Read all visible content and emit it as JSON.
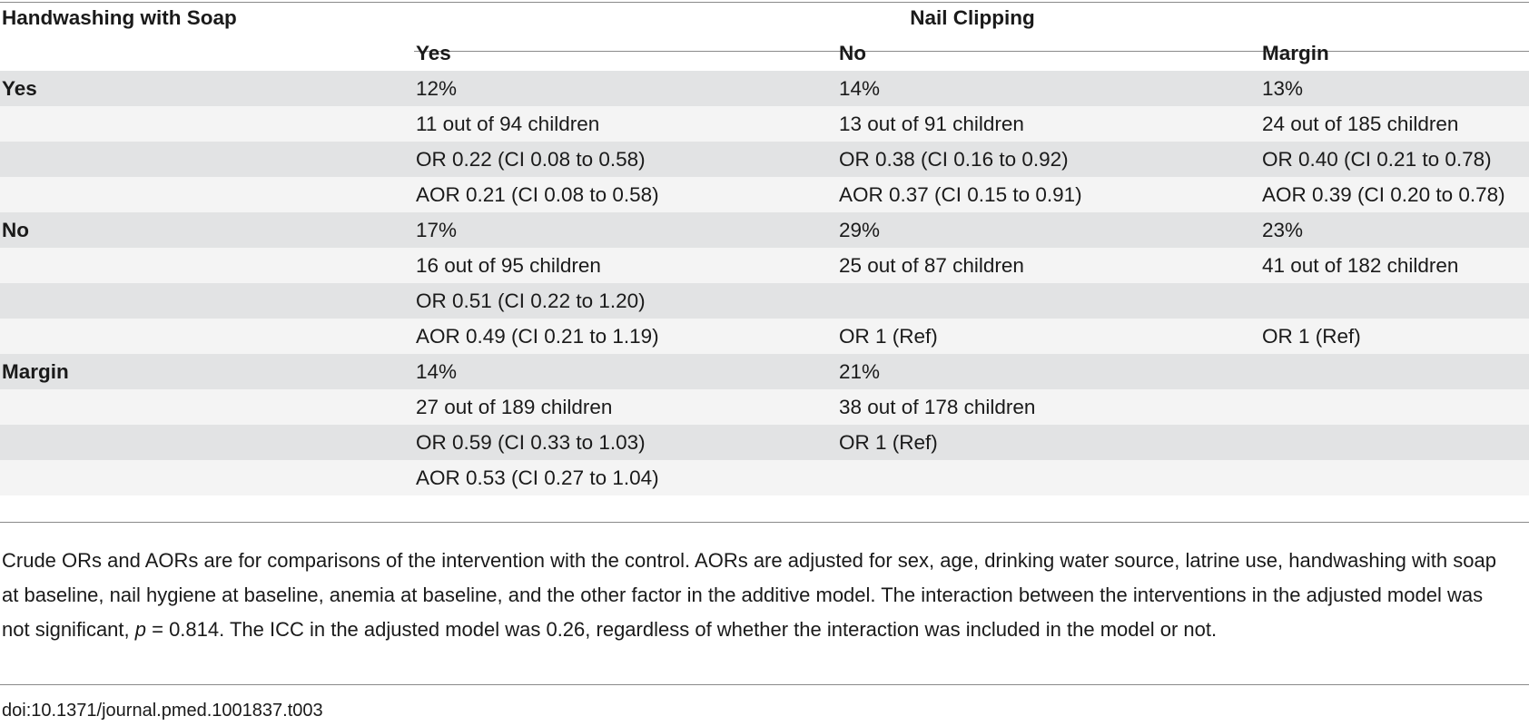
{
  "table": {
    "row_header": "Handwashing with Soap",
    "col_group_header": "Nail Clipping",
    "col_headers": [
      "Yes",
      "No",
      "Margin"
    ],
    "rows": [
      {
        "label": "Yes",
        "cells": [
          "12%",
          "14%",
          "13%"
        ],
        "shade": true
      },
      {
        "label": "",
        "cells": [
          "11 out of 94 children",
          "13 out of 91 children",
          "24 out of 185 children"
        ],
        "shade": false
      },
      {
        "label": "",
        "cells": [
          "OR 0.22 (CI 0.08 to 0.58)",
          "OR 0.38 (CI 0.16 to 0.92)",
          "OR 0.40 (CI 0.21 to 0.78)"
        ],
        "shade": true
      },
      {
        "label": "",
        "cells": [
          "AOR 0.21 (CI 0.08 to 0.58)",
          "AOR 0.37 (CI 0.15 to 0.91)",
          "AOR 0.39 (CI 0.20 to 0.78)"
        ],
        "shade": false
      },
      {
        "label": "No",
        "cells": [
          "17%",
          "29%",
          "23%"
        ],
        "shade": true
      },
      {
        "label": "",
        "cells": [
          "16 out of 95 children",
          "25 out of 87 children",
          "41 out of 182 children"
        ],
        "shade": false
      },
      {
        "label": "",
        "cells": [
          "OR 0.51 (CI 0.22 to 1.20)",
          "",
          ""
        ],
        "shade": true
      },
      {
        "label": "",
        "cells": [
          "AOR 0.49 (CI 0.21 to 1.19)",
          "OR 1 (Ref)",
          "OR 1 (Ref)"
        ],
        "shade": false
      },
      {
        "label": "Margin",
        "cells": [
          "14%",
          "21%",
          ""
        ],
        "shade": true
      },
      {
        "label": "",
        "cells": [
          "27 out of 189 children",
          "38 out of 178 children",
          ""
        ],
        "shade": false
      },
      {
        "label": "",
        "cells": [
          "OR 0.59 (CI 0.33 to 1.03)",
          "OR 1 (Ref)",
          ""
        ],
        "shade": true
      },
      {
        "label": "",
        "cells": [
          "AOR 0.53 (CI 0.27 to 1.04)",
          "",
          ""
        ],
        "shade": false
      }
    ]
  },
  "footnote": {
    "text_before_p": "Crude ORs and AORs are for comparisons of the intervention with the control. AORs are adjusted for sex, age, drinking water source, latrine use, handwashing with soap at baseline, nail hygiene at baseline, anemia at baseline, and the other factor in the additive model. The interaction between the interventions in the adjusted model was not significant, ",
    "p_symbol": "p",
    "text_after_p": " = 0.814. The ICC in the adjusted model was 0.26, regardless of whether the interaction was included in the model or not."
  },
  "doi": "doi:10.1371/journal.pmed.1001837.t003",
  "colors": {
    "shade_dark": "#e2e3e4",
    "shade_light": "#f4f4f4",
    "rule": "#8a8a8a"
  }
}
